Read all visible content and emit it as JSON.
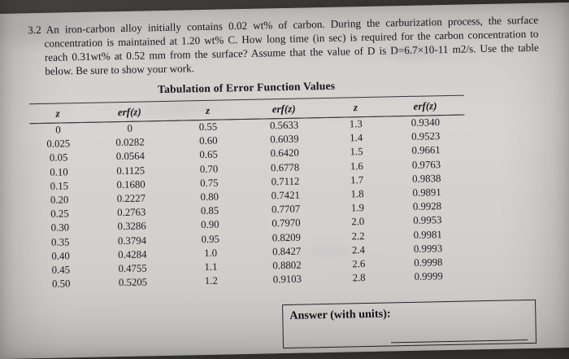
{
  "problem": {
    "number": "3.2",
    "text": "An iron-carbon alloy initially contains 0.02 wt% of carbon. During the carburization process, the surface concentration is maintained at 1.20 wt% C. How long time (in sec) is required for the carbon concentration to reach 0.31wt% at 0.52 mm from the surface? Assume that the value of D is D=6.7×10-11 m2/s. Use the table below. Be sure to show your work."
  },
  "table": {
    "title": "Tabulation of Error Function Values",
    "headers": [
      "z",
      "erf(z)",
      "z",
      "erf(z)",
      "z",
      "erf(z)"
    ],
    "rows": [
      [
        "0",
        "0",
        "0.55",
        "0.5633",
        "1.3",
        "0.9340"
      ],
      [
        "0.025",
        "0.0282",
        "0.60",
        "0.6039",
        "1.4",
        "0.9523"
      ],
      [
        "0.05",
        "0.0564",
        "0.65",
        "0.6420",
        "1.5",
        "0.9661"
      ],
      [
        "0.10",
        "0.1125",
        "0.70",
        "0.6778",
        "1.6",
        "0.9763"
      ],
      [
        "0.15",
        "0.1680",
        "0.75",
        "0.7112",
        "1.7",
        "0.9838"
      ],
      [
        "0.20",
        "0.2227",
        "0.80",
        "0.7421",
        "1.8",
        "0.9891"
      ],
      [
        "0.25",
        "0.2763",
        "0.85",
        "0.7707",
        "1.9",
        "0.9928"
      ],
      [
        "0.30",
        "0.3286",
        "0.90",
        "0.7970",
        "2.0",
        "0.9953"
      ],
      [
        "0.35",
        "0.3794",
        "0.95",
        "0.8209",
        "2.2",
        "0.9981"
      ],
      [
        "0.40",
        "0.4284",
        "1.0",
        "0.8427",
        "2.4",
        "0.9993"
      ],
      [
        "0.45",
        "0.4755",
        "1.1",
        "0.8802",
        "2.6",
        "0.9998"
      ],
      [
        "0.50",
        "0.5205",
        "1.2",
        "0.9103",
        "2.8",
        "0.9999"
      ]
    ]
  },
  "answer": {
    "label": "Answer (with units):"
  },
  "colors": {
    "background": "#4a4946",
    "paper": "#d2d0cc",
    "ink": "#1c1c22"
  }
}
